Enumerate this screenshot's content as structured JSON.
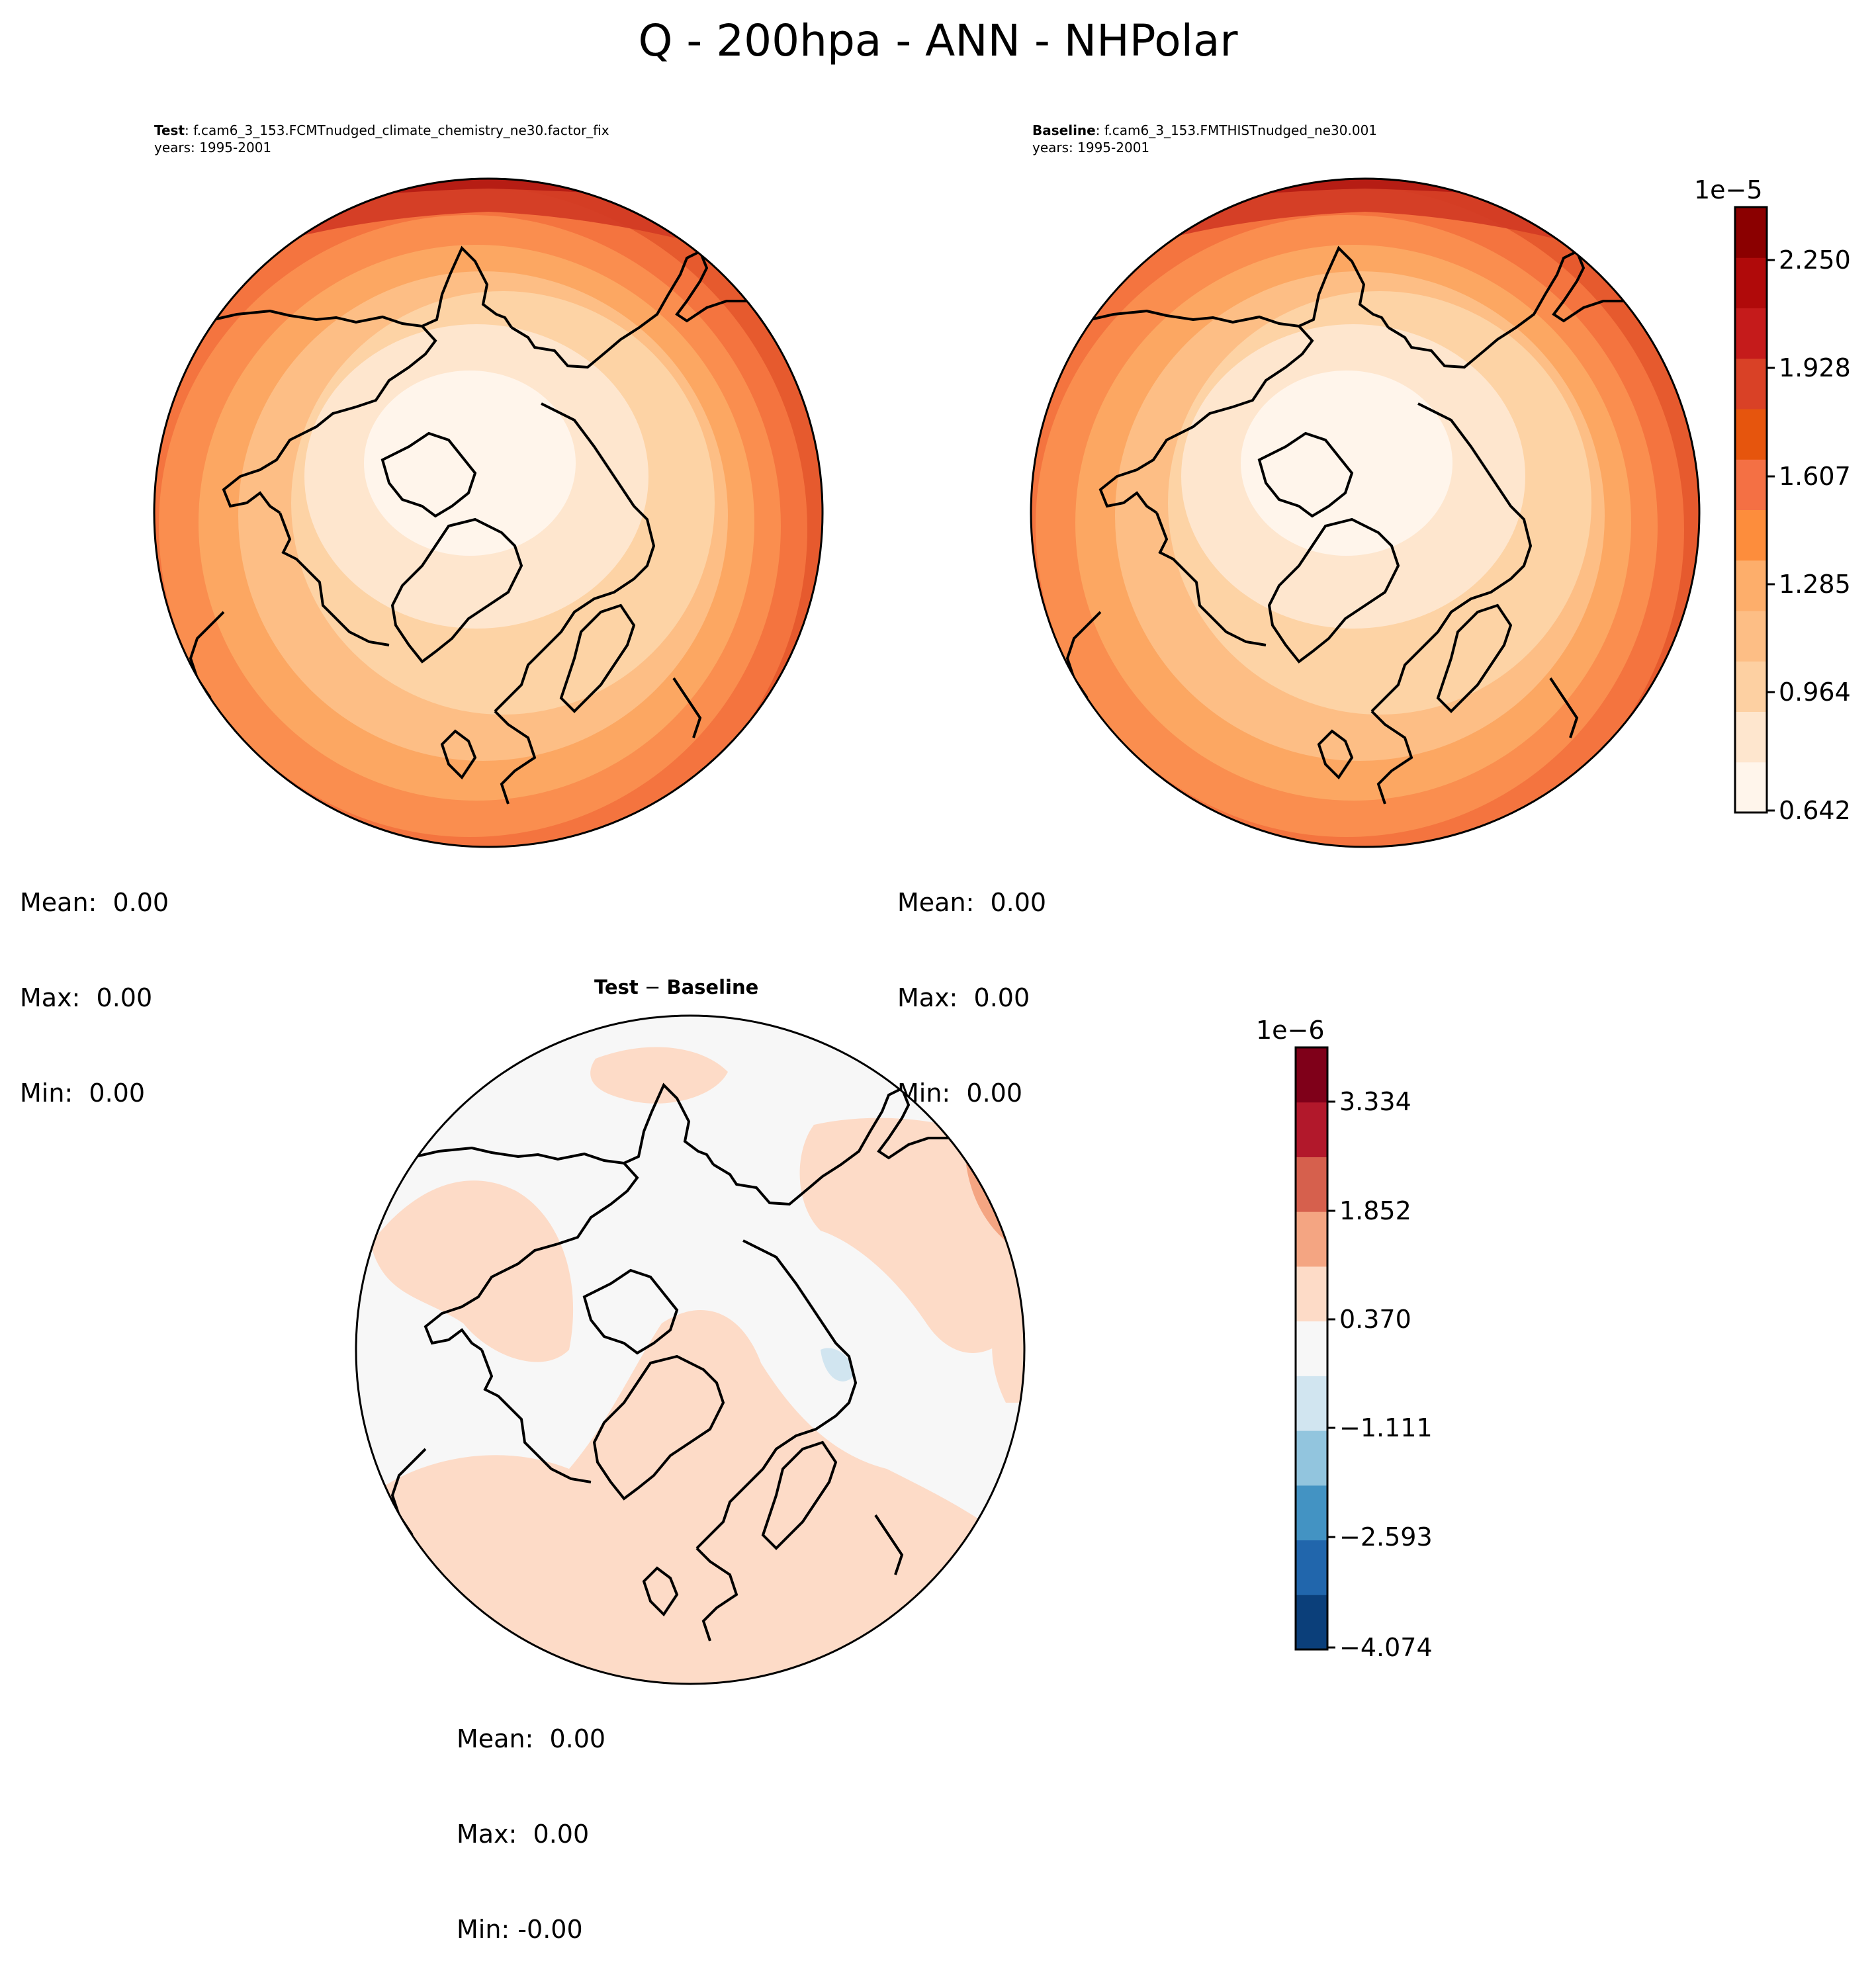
{
  "title": "Q - 200hpa - ANN - NHPolar",
  "panels": {
    "test": {
      "label": "Test",
      "case": ": f.cam6_3_153.FCMTnudged_climate_chemistry_ne30.factor_fix",
      "years": "years: 1995-2001",
      "mean": "Mean:  0.00",
      "max": "Max:  0.00",
      "min": "Min:  0.00"
    },
    "baseline": {
      "label": "Baseline",
      "case": ": f.cam6_3_153.FMTHISTnudged_ne30.001",
      "years": "years: 1995-2001",
      "mean": "Mean:  0.00",
      "max": "Max:  0.00",
      "min": "Min:  0.00"
    },
    "diff": {
      "title_a": "Test",
      "title_op": " − ",
      "title_b": "Baseline",
      "mean": "Mean:  0.00",
      "max": "Max:  0.00",
      "min": "Min: -0.00"
    }
  },
  "colorbars": {
    "main": {
      "exponent": "1e−5",
      "ticks": [
        "2.250",
        "1.928",
        "1.607",
        "1.285",
        "0.964",
        "0.642"
      ],
      "colors": [
        "#fff5eb",
        "#fee6ce",
        "#fdd0a2",
        "#fdbe85",
        "#fdae6b",
        "#fd8d3c",
        "#f47044",
        "#e6550d",
        "#d94126",
        "#c51b1b",
        "#b00a0a",
        "#8b0000"
      ]
    },
    "diff": {
      "exponent": "1e−6",
      "ticks": [
        "3.334",
        "1.852",
        "0.370",
        "−1.111",
        "−2.593",
        "−4.074"
      ],
      "colors": [
        "#0b3f7a",
        "#2166ac",
        "#4393c3",
        "#92c5de",
        "#d1e5f0",
        "#f7f7f7",
        "#fddbc7",
        "#f4a582",
        "#d6604d",
        "#b2182b",
        "#7f0019"
      ]
    }
  },
  "map": {
    "projection": "North Polar Stereographic",
    "field": "Q",
    "level": "200hpa",
    "season": "ANN",
    "region": "NHPolar"
  }
}
